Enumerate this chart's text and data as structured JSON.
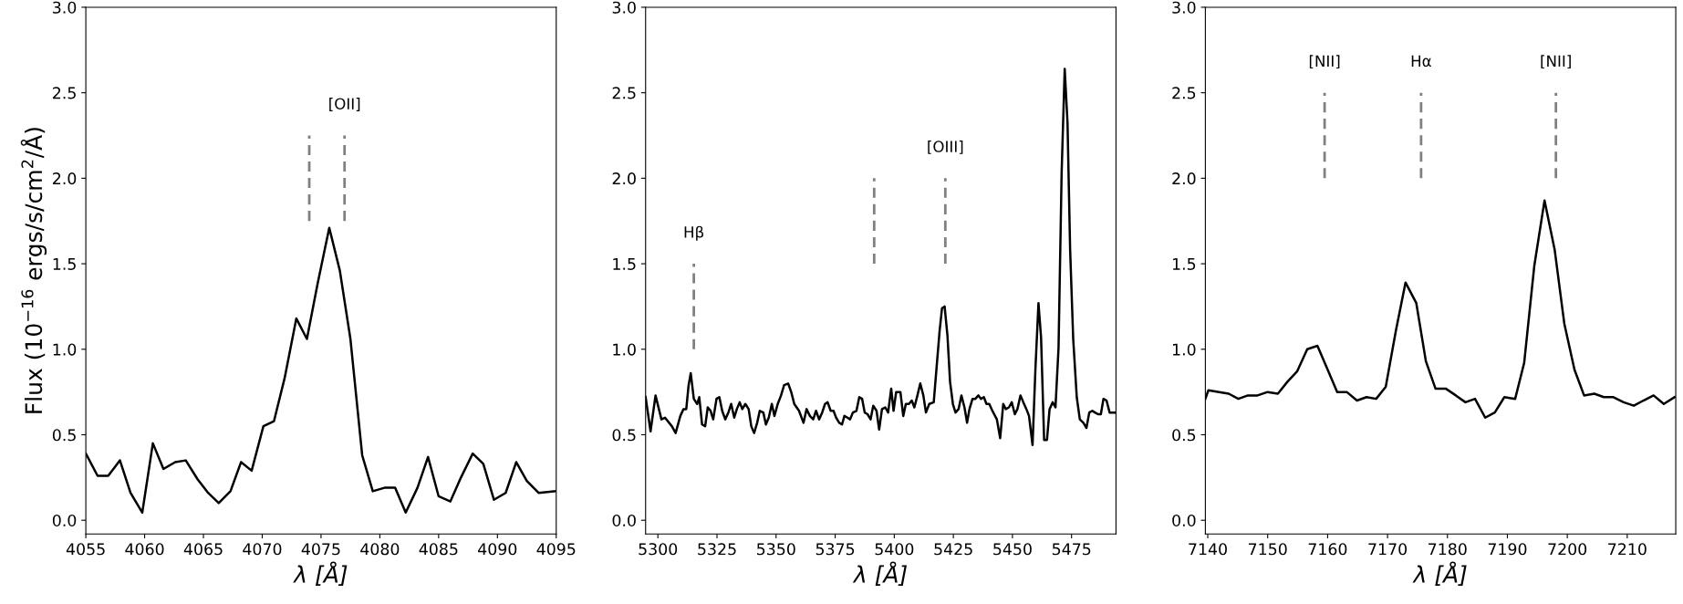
{
  "chart_data": [
    {
      "type": "line",
      "ylabel": "Flux (10$^{−16}$ ergs/s/cm$^{2}$/Å)",
      "xlabel": "λ [Å]",
      "xlim": [
        4055,
        4095
      ],
      "xticks": [
        4055,
        4060,
        4065,
        4070,
        4075,
        4080,
        4085,
        4090,
        4095
      ],
      "ylim": [
        -0.08,
        3.0
      ],
      "yticks": [
        {
          "value": 0,
          "label": "0.0"
        },
        {
          "value": 0.5,
          "label": "0.5"
        },
        {
          "value": 1.0,
          "label": "1.0"
        },
        {
          "value": 1.5,
          "label": "1.5"
        },
        {
          "value": 2.0,
          "label": "2.0"
        },
        {
          "value": 2.5,
          "label": "2.5"
        },
        {
          "value": 3.0,
          "label": "3.0"
        }
      ],
      "series": [
        {
          "color": "#000000",
          "line_style": "solid",
          "x": [
            4055,
            4056.0,
            4056.9,
            4057.9,
            4058.8,
            4059.8,
            4060.7,
            4061.6,
            4062.6,
            4063.5,
            4064.5,
            4065.4,
            4066.3,
            4067.3,
            4068.2,
            4069.1,
            4070.1,
            4071.0,
            4071.9,
            4072.9,
            4073.8,
            4074.7,
            4075.7,
            4076.6,
            4077.5,
            4078.5,
            4079.4,
            4080.4,
            4081.3,
            4082.2,
            4083.2,
            4084.1,
            4085.0,
            4086.0,
            4086.9,
            4087.9,
            4088.8,
            4089.7,
            4090.7,
            4091.6,
            4092.5,
            4093.5,
            4094.9
          ],
          "values": [
            0.39,
            0.26,
            0.26,
            0.35,
            0.16,
            0.045,
            0.45,
            0.3,
            0.34,
            0.35,
            0.24,
            0.16,
            0.1,
            0.17,
            0.34,
            0.29,
            0.55,
            0.58,
            0.83,
            1.18,
            1.06,
            1.38,
            1.71,
            1.46,
            1.06,
            0.38,
            0.17,
            0.19,
            0.19,
            0.045,
            0.19,
            0.37,
            0.14,
            0.11,
            0.25,
            0.39,
            0.33,
            0.12,
            0.16,
            0.34,
            0.23,
            0.16,
            0.17
          ]
        },
        {
          "color": "#808080",
          "line_style": "dashed",
          "x": [
            4074.0,
            4074.0
          ],
          "values": [
            1.75,
            2.25
          ]
        },
        {
          "color": "#808080",
          "line_style": "dashed",
          "x": [
            4077.0,
            4077.0
          ],
          "values": [
            1.75,
            2.25
          ]
        }
      ],
      "annotations": [
        {
          "text": "[OII]",
          "x": 4077.0,
          "y": 2.25
        }
      ]
    },
    {
      "type": "line",
      "xlabel": "λ [Å]",
      "xlim": [
        5294.8,
        5493.8
      ],
      "xticks": [
        5300,
        5325,
        5350,
        5375,
        5400,
        5425,
        5450,
        5475
      ],
      "ylim": [
        -0.08,
        3.0
      ],
      "yticks": [
        {
          "value": 0,
          "label": "0.0"
        },
        {
          "value": 0.5,
          "label": "0.5"
        },
        {
          "value": 1.0,
          "label": "1.0"
        },
        {
          "value": 1.5,
          "label": "1.5"
        },
        {
          "value": 2.0,
          "label": "2.0"
        },
        {
          "value": 2.5,
          "label": "2.5"
        },
        {
          "value": 3.0,
          "label": "3.0"
        }
      ],
      "series": [
        {
          "color": "#000000",
          "line_style": "solid",
          "x": [
            5294.8,
            5296.9,
            5299,
            5301.5,
            5303,
            5305.9,
            5307.5,
            5309.5,
            5310.8,
            5312,
            5313,
            5313.9,
            5315.2,
            5316.6,
            5317.5,
            5318.7,
            5320,
            5321.1,
            5322.3,
            5323.4,
            5324.8,
            5326,
            5327.2,
            5328.5,
            5329.8,
            5331,
            5332.3,
            5333.4,
            5334.6,
            5335.7,
            5337,
            5338.4,
            5339.5,
            5340.7,
            5342,
            5343.1,
            5344.6,
            5345.7,
            5346.9,
            5348.2,
            5349.3,
            5350.7,
            5352.1,
            5353.4,
            5355.1,
            5356.4,
            5357.7,
            5359.7,
            5361.6,
            5362.9,
            5364.3,
            5365.7,
            5366.9,
            5368.2,
            5369.5,
            5370.7,
            5371.8,
            5373.1,
            5374.3,
            5375.4,
            5376.7,
            5377.9,
            5378.9,
            5380.2,
            5381.3,
            5382.5,
            5384,
            5385.2,
            5386.4,
            5387.5,
            5388.7,
            5390,
            5391.1,
            5392.5,
            5393.6,
            5394.8,
            5396.2,
            5397.4,
            5398.7,
            5399.7,
            5400.8,
            5402.6,
            5403.8,
            5404.9,
            5406.2,
            5407.4,
            5408.5,
            5409.8,
            5411,
            5412.3,
            5413.4,
            5414.8,
            5416.7,
            5418,
            5419.2,
            5420.2,
            5421.3,
            5422.5,
            5423.6,
            5424.8,
            5425.9,
            5427.2,
            5428.4,
            5429.7,
            5430.8,
            5431.8,
            5433.1,
            5434.3,
            5435.6,
            5436.7,
            5437.9,
            5439,
            5440.2,
            5441.5,
            5443.4,
            5444.8,
            5446.1,
            5447.2,
            5448.5,
            5449.7,
            5451,
            5452.1,
            5453.4,
            5454.6,
            5455.9,
            5457,
            5458.5,
            5459.7,
            5461,
            5462.1,
            5463.4,
            5464.6,
            5465.7,
            5467,
            5468.2,
            5469.5,
            5470.8,
            5472.1,
            5473.3,
            5474.4,
            5475.7,
            5477.2,
            5478.5,
            5480,
            5481.3,
            5482.5,
            5483.8,
            5484.9,
            5486.2,
            5487.4,
            5488.5,
            5489.8,
            5491.1,
            5493.8
          ],
          "values": [
            0.72,
            0.52,
            0.73,
            0.59,
            0.6,
            0.55,
            0.51,
            0.61,
            0.65,
            0.65,
            0.79,
            0.86,
            0.71,
            0.68,
            0.72,
            0.56,
            0.55,
            0.66,
            0.64,
            0.59,
            0.71,
            0.72,
            0.64,
            0.59,
            0.63,
            0.68,
            0.6,
            0.65,
            0.69,
            0.65,
            0.68,
            0.65,
            0.55,
            0.51,
            0.57,
            0.64,
            0.63,
            0.56,
            0.6,
            0.68,
            0.61,
            0.68,
            0.73,
            0.79,
            0.8,
            0.75,
            0.68,
            0.64,
            0.57,
            0.65,
            0.61,
            0.59,
            0.64,
            0.59,
            0.63,
            0.68,
            0.69,
            0.64,
            0.64,
            0.6,
            0.57,
            0.56,
            0.61,
            0.6,
            0.59,
            0.63,
            0.64,
            0.72,
            0.71,
            0.63,
            0.62,
            0.59,
            0.67,
            0.64,
            0.53,
            0.65,
            0.66,
            0.63,
            0.77,
            0.64,
            0.75,
            0.75,
            0.61,
            0.68,
            0.68,
            0.7,
            0.66,
            0.73,
            0.8,
            0.73,
            0.63,
            0.68,
            0.69,
            0.91,
            1.11,
            1.24,
            1.25,
            1.08,
            0.81,
            0.68,
            0.63,
            0.65,
            0.73,
            0.66,
            0.57,
            0.65,
            0.71,
            0.71,
            0.73,
            0.71,
            0.72,
            0.68,
            0.68,
            0.64,
            0.59,
            0.48,
            0.68,
            0.65,
            0.66,
            0.69,
            0.62,
            0.65,
            0.73,
            0.69,
            0.65,
            0.61,
            0.44,
            0.88,
            1.27,
            1.07,
            0.47,
            0.47,
            0.65,
            0.69,
            0.66,
            1.01,
            2.03,
            2.64,
            2.32,
            1.58,
            1.06,
            0.72,
            0.59,
            0.57,
            0.54,
            0.63,
            0.64,
            0.63,
            0.62,
            0.62,
            0.71,
            0.7,
            0.63,
            0.63
          ]
        },
        {
          "color": "#808080",
          "line_style": "dashed",
          "x": [
            5315.2,
            5315.2
          ],
          "values": [
            1.0,
            1.5
          ]
        },
        {
          "color": "#808080",
          "line_style": "dashed",
          "x": [
            5391.5,
            5391.5
          ],
          "values": [
            1.5,
            2.0
          ]
        },
        {
          "color": "#808080",
          "line_style": "dashed",
          "x": [
            5421.6,
            5421.6
          ],
          "values": [
            1.5,
            2.0
          ]
        }
      ],
      "annotations": [
        {
          "text": "Hβ",
          "x": 5315.2,
          "y": 1.5
        },
        {
          "text": "[OIII]",
          "x": 5421.6,
          "y": 2.0
        }
      ]
    },
    {
      "type": "line",
      "xlabel": "λ [Å]",
      "xlim": [
        7139.6,
        7218.1
      ],
      "xticks": [
        7140,
        7150,
        7160,
        7170,
        7180,
        7190,
        7200,
        7210
      ],
      "ylim": [
        -0.08,
        3.0
      ],
      "yticks": [
        {
          "value": 0,
          "label": "0.0"
        },
        {
          "value": 0.5,
          "label": "0.5"
        },
        {
          "value": 1.0,
          "label": "1.0"
        },
        {
          "value": 1.5,
          "label": "1.5"
        },
        {
          "value": 2.0,
          "label": "2.0"
        },
        {
          "value": 2.5,
          "label": "2.5"
        },
        {
          "value": 3.0,
          "label": "3.0"
        }
      ],
      "series": [
        {
          "color": "#000000",
          "line_style": "solid",
          "x": [
            7139.6,
            7140.1,
            7141.9,
            7143.5,
            7145.1,
            7146.7,
            7148.3,
            7150,
            7151.7,
            7153.3,
            7154.9,
            7156.6,
            7158.3,
            7159.9,
            7161.6,
            7163.2,
            7164.9,
            7166.5,
            7168.1,
            7169.7,
            7171.4,
            7173,
            7174.8,
            7176.4,
            7178,
            7179.7,
            7181.4,
            7183,
            7184.6,
            7186.3,
            7187.9,
            7189.5,
            7191.3,
            7192.8,
            7194.5,
            7196.2,
            7197.9,
            7199.5,
            7201.2,
            7202.8,
            7204.5,
            7206.1,
            7207.7,
            7209.4,
            7211.1,
            7212.7,
            7214.4,
            7216.1,
            7217.9
          ],
          "values": [
            0.71,
            0.76,
            0.75,
            0.74,
            0.71,
            0.73,
            0.73,
            0.75,
            0.74,
            0.81,
            0.87,
            1.0,
            1.02,
            0.89,
            0.75,
            0.75,
            0.7,
            0.72,
            0.71,
            0.78,
            1.11,
            1.39,
            1.27,
            0.93,
            0.77,
            0.77,
            0.73,
            0.69,
            0.71,
            0.6,
            0.63,
            0.72,
            0.71,
            0.92,
            1.49,
            1.87,
            1.58,
            1.15,
            0.88,
            0.73,
            0.74,
            0.72,
            0.72,
            0.69,
            0.67,
            0.7,
            0.73,
            0.68,
            0.72
          ]
        },
        {
          "color": "#808080",
          "line_style": "dashed",
          "x": [
            7159.5,
            7159.5
          ],
          "values": [
            2.0,
            2.5
          ]
        },
        {
          "color": "#808080",
          "line_style": "dashed",
          "x": [
            7175.6,
            7175.6
          ],
          "values": [
            2.0,
            2.5
          ]
        },
        {
          "color": "#808080",
          "line_style": "dashed",
          "x": [
            7198.1,
            7198.1
          ],
          "values": [
            2.0,
            2.5
          ]
        }
      ],
      "annotations": [
        {
          "text": "[NII]",
          "x": 7159.5,
          "y": 2.5
        },
        {
          "text": "Hα",
          "x": 7175.6,
          "y": 2.5
        },
        {
          "text": "[NII]",
          "x": 7198.1,
          "y": 2.5
        }
      ]
    }
  ]
}
